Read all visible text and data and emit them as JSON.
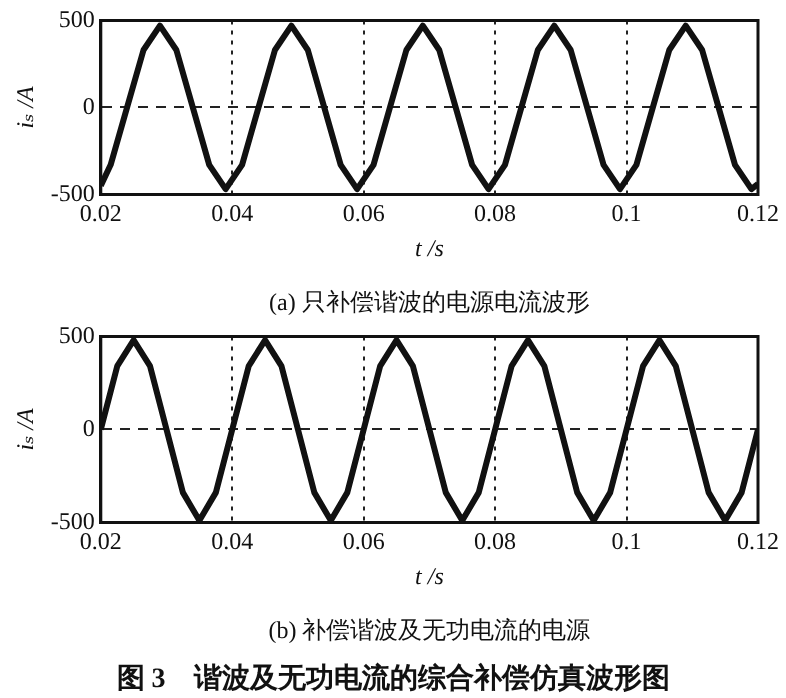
{
  "chart_data": [
    {
      "type": "line",
      "xlabel": "t /s",
      "ylabel": "iₛ /A",
      "annotations": [
        "(a) 只补偿谐波的电源电流波形"
      ],
      "series": [
        {
          "color": "#111111",
          "x": [
            0.02,
            0.0215,
            0.024,
            0.0265,
            0.029,
            0.0315,
            0.034,
            0.0365,
            0.039,
            0.0415,
            0.044,
            0.0465,
            0.049,
            0.0515,
            0.054,
            0.0565,
            0.059,
            0.0615,
            0.064,
            0.0665,
            0.069,
            0.0715,
            0.074,
            0.0765,
            0.079,
            0.0815,
            0.084,
            0.0865,
            0.089,
            0.0915,
            0.094,
            0.0965,
            0.099,
            0.1015,
            0.104,
            0.1065,
            0.109,
            0.1115,
            0.114,
            0.1165,
            0.119,
            0.12
          ],
          "values": [
            -450,
            -330,
            0,
            330,
            470,
            330,
            0,
            -330,
            -470,
            -330,
            0,
            330,
            470,
            330,
            0,
            -330,
            -470,
            -330,
            0,
            330,
            470,
            330,
            0,
            -330,
            -470,
            -330,
            0,
            330,
            470,
            330,
            0,
            -330,
            -470,
            -330,
            0,
            330,
            470,
            330,
            0,
            -330,
            -470,
            -440
          ]
        }
      ],
      "xlim": [
        0.02,
        0.12
      ],
      "xticks": [
        0.02,
        0.04,
        0.06,
        0.08,
        0.1,
        0.12
      ],
      "ylim": [
        -500,
        500
      ],
      "yticks": [
        -500,
        0,
        500
      ],
      "grid": true,
      "marker": "none",
      "line_style": "solid",
      "legend": false
    },
    {
      "type": "line",
      "xlabel": "t /s",
      "ylabel": "iₛ /A",
      "annotations": [
        "(b) 补偿谐波及无功电流的电源",
        "图 3　谐波及无功电流的综合补偿仿真波形图"
      ],
      "series": [
        {
          "color": "#111111",
          "x": [
            0.02,
            0.0225,
            0.025,
            0.0275,
            0.03,
            0.0325,
            0.035,
            0.0375,
            0.04,
            0.0425,
            0.045,
            0.0475,
            0.05,
            0.0525,
            0.055,
            0.0575,
            0.06,
            0.0625,
            0.065,
            0.0675,
            0.07,
            0.0725,
            0.075,
            0.0775,
            0.08,
            0.0825,
            0.085,
            0.0875,
            0.09,
            0.0925,
            0.095,
            0.0975,
            0.1,
            0.1025,
            0.105,
            0.1075,
            0.11,
            0.1125,
            0.115,
            0.1175,
            0.12
          ],
          "values": [
            0,
            340,
            480,
            340,
            0,
            -340,
            -490,
            -340,
            0,
            340,
            480,
            340,
            0,
            -340,
            -490,
            -340,
            0,
            340,
            480,
            340,
            0,
            -340,
            -490,
            -340,
            0,
            340,
            480,
            340,
            0,
            -340,
            -490,
            -340,
            0,
            340,
            480,
            340,
            0,
            -340,
            -490,
            -340,
            0
          ]
        }
      ],
      "xlim": [
        0.02,
        0.12
      ],
      "xticks": [
        0.02,
        0.04,
        0.06,
        0.08,
        0.1,
        0.12
      ],
      "ylim": [
        -500,
        500
      ],
      "yticks": [
        -500,
        0,
        500
      ],
      "grid": true,
      "marker": "none",
      "line_style": "solid",
      "legend": false
    }
  ]
}
